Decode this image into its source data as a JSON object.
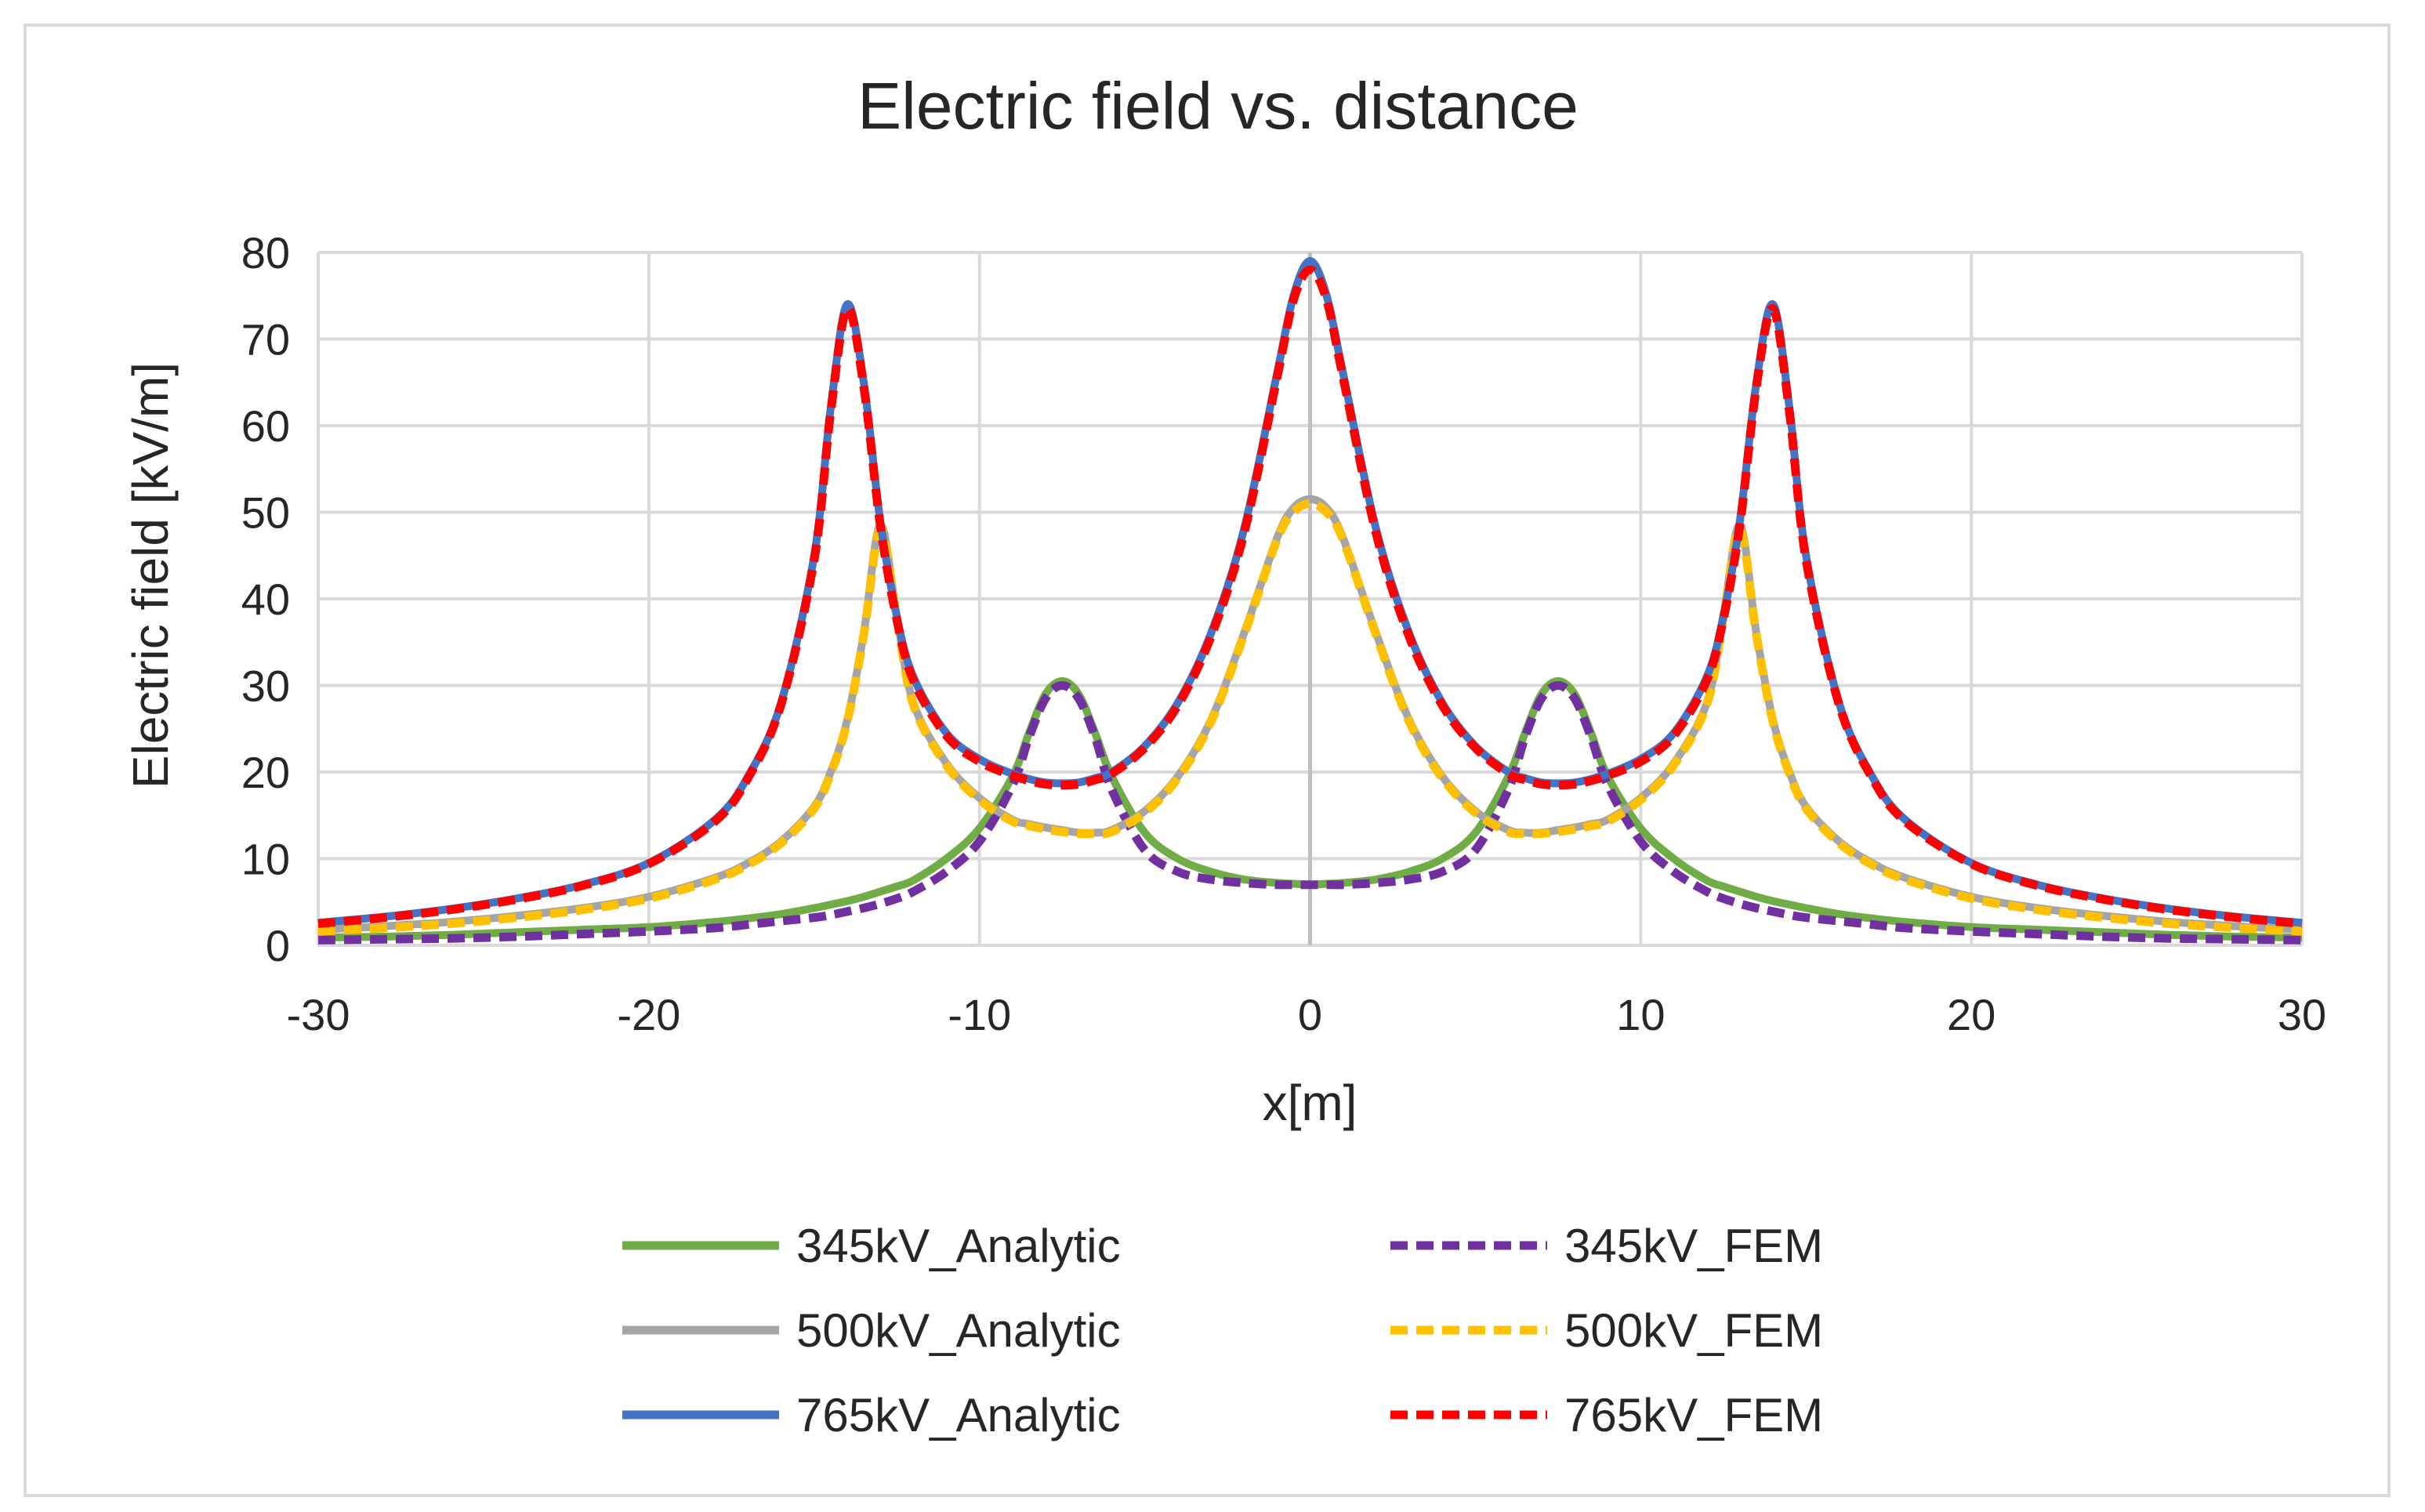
{
  "chart_data": {
    "type": "line",
    "title": "Electric field vs. distance",
    "xlabel": "x[m]",
    "ylabel": "Electric field [kV/m]",
    "xlim": [
      -30,
      30
    ],
    "ylim": [
      0,
      80
    ],
    "xticks": [
      -30,
      -20,
      -10,
      0,
      10,
      20,
      30
    ],
    "yticks": [
      0,
      10,
      20,
      30,
      40,
      50,
      60,
      70,
      80
    ],
    "grid": true,
    "legend_position": "bottom",
    "x": [
      -30,
      -28,
      -26,
      -24,
      -22,
      -20,
      -18,
      -17,
      -16,
      -15,
      -14.5,
      -14,
      -13.5,
      -13,
      -12.5,
      -12,
      -11,
      -10,
      -9,
      -8.5,
      -8,
      -7.5,
      -7,
      -6.5,
      -6,
      -5,
      -4,
      -3,
      -2,
      -1,
      -0.5,
      0,
      0.5,
      1,
      2,
      3,
      4,
      5,
      6,
      6.5,
      7,
      7.5,
      8,
      8.5,
      9,
      10,
      11,
      12,
      12.5,
      13,
      13.5,
      14,
      14.5,
      15,
      16,
      17,
      18,
      20,
      22,
      24,
      26,
      28,
      30
    ],
    "series": [
      {
        "name": "345kV_Analytic",
        "color": "#70ad47",
        "dash": false,
        "values": [
          0.9,
          1.0,
          1.2,
          1.5,
          1.8,
          2.1,
          2.7,
          3.1,
          3.6,
          4.3,
          4.7,
          5.1,
          5.6,
          6.2,
          6.8,
          7.5,
          10.0,
          13.5,
          19.5,
          24.5,
          29.0,
          30.5,
          29.0,
          24.5,
          19.5,
          13.0,
          10.0,
          8.5,
          7.6,
          7.2,
          7.1,
          7.0,
          7.1,
          7.2,
          7.6,
          8.5,
          10.0,
          13.0,
          19.5,
          24.5,
          29.0,
          30.5,
          29.0,
          24.5,
          19.5,
          13.5,
          10.0,
          7.5,
          6.8,
          6.2,
          5.6,
          5.1,
          4.7,
          4.3,
          3.6,
          3.1,
          2.7,
          2.1,
          1.8,
          1.5,
          1.2,
          1.0,
          0.9
        ]
      },
      {
        "name": "345kV_FEM",
        "color": "#7030a0",
        "dash": true,
        "values": [
          0.6,
          0.7,
          0.8,
          1.0,
          1.3,
          1.6,
          2.0,
          2.4,
          2.8,
          3.2,
          3.5,
          3.9,
          4.3,
          4.8,
          5.4,
          6.2,
          8.5,
          12.0,
          18.5,
          24.0,
          28.5,
          30.0,
          28.5,
          24.0,
          18.0,
          11.0,
          8.5,
          7.6,
          7.2,
          7.0,
          7.0,
          7.0,
          7.0,
          7.0,
          7.2,
          7.6,
          8.5,
          11.0,
          18.0,
          24.0,
          28.5,
          30.0,
          28.5,
          24.0,
          18.5,
          12.0,
          8.5,
          6.2,
          5.4,
          4.8,
          4.3,
          3.9,
          3.5,
          3.2,
          2.8,
          2.4,
          2.0,
          1.6,
          1.3,
          1.0,
          0.8,
          0.7,
          0.6
        ]
      },
      {
        "name": "500kV_Analytic",
        "color": "#a5a5a5",
        "dash": false,
        "values": [
          1.8,
          2.2,
          2.7,
          3.4,
          4.3,
          5.6,
          7.8,
          9.5,
          12.0,
          16.0,
          20.0,
          26.0,
          36.0,
          48.5,
          38.0,
          28.0,
          21.0,
          17.0,
          14.5,
          14.0,
          13.6,
          13.3,
          13.0,
          13.0,
          13.3,
          15.5,
          19.5,
          26.0,
          36.0,
          47.0,
          50.5,
          51.5,
          50.5,
          47.0,
          36.0,
          26.0,
          19.5,
          15.5,
          13.3,
          13.0,
          13.0,
          13.3,
          13.6,
          14.0,
          14.5,
          17.0,
          21.0,
          28.0,
          38.0,
          48.5,
          36.0,
          26.0,
          20.0,
          16.0,
          12.0,
          9.5,
          7.8,
          5.6,
          4.3,
          3.4,
          2.7,
          2.2,
          1.8
        ]
      },
      {
        "name": "500kV_FEM",
        "color": "#ffc000",
        "dash": true,
        "values": [
          1.6,
          2.0,
          2.5,
          3.2,
          4.1,
          5.4,
          7.6,
          9.3,
          11.8,
          15.8,
          19.8,
          25.8,
          35.8,
          48.0,
          37.8,
          27.8,
          20.8,
          16.8,
          14.3,
          13.8,
          13.4,
          13.1,
          12.9,
          12.9,
          13.1,
          15.3,
          19.3,
          25.8,
          35.8,
          46.8,
          50.0,
          51.0,
          50.0,
          46.8,
          35.8,
          25.8,
          19.3,
          15.3,
          13.1,
          12.9,
          12.9,
          13.1,
          13.4,
          13.8,
          14.3,
          16.8,
          20.8,
          27.8,
          37.8,
          48.0,
          35.8,
          25.8,
          19.8,
          15.8,
          11.8,
          9.3,
          7.6,
          5.4,
          4.1,
          3.2,
          2.5,
          2.0,
          1.6
        ]
      },
      {
        "name": "765kV_Analytic",
        "color": "#4472c4",
        "dash": false,
        "values": [
          2.6,
          3.3,
          4.2,
          5.4,
          7.0,
          9.5,
          14.5,
          19.5,
          28.0,
          45.0,
          62.0,
          74.0,
          65.0,
          49.0,
          38.0,
          31.0,
          24.5,
          21.5,
          19.8,
          19.2,
          18.8,
          18.7,
          18.8,
          19.3,
          20.0,
          23.0,
          28.0,
          36.0,
          48.0,
          66.0,
          75.0,
          79.0,
          75.0,
          66.0,
          48.0,
          36.0,
          28.0,
          23.0,
          20.0,
          19.3,
          18.8,
          18.7,
          18.8,
          19.2,
          19.8,
          21.5,
          24.5,
          31.0,
          38.0,
          49.0,
          65.0,
          74.0,
          62.0,
          45.0,
          28.0,
          19.5,
          14.5,
          9.5,
          7.0,
          5.4,
          4.2,
          3.3,
          2.6
        ]
      },
      {
        "name": "765kV_FEM",
        "color": "#ff0000",
        "dash": true,
        "values": [
          2.5,
          3.2,
          4.1,
          5.3,
          6.9,
          9.4,
          14.3,
          19.3,
          27.8,
          44.5,
          61.5,
          73.5,
          64.5,
          48.5,
          37.6,
          30.6,
          24.2,
          21.2,
          19.6,
          19.0,
          18.6,
          18.5,
          18.6,
          19.1,
          19.8,
          22.8,
          27.7,
          35.6,
          47.5,
          65.5,
          74.5,
          78.0,
          74.5,
          65.5,
          47.5,
          35.6,
          27.7,
          22.8,
          19.8,
          19.1,
          18.6,
          18.5,
          18.6,
          19.0,
          19.6,
          21.2,
          24.2,
          30.6,
          37.6,
          48.5,
          64.5,
          73.5,
          61.5,
          44.5,
          27.8,
          19.3,
          14.3,
          9.4,
          6.9,
          5.3,
          4.1,
          3.2,
          2.5
        ]
      }
    ]
  }
}
